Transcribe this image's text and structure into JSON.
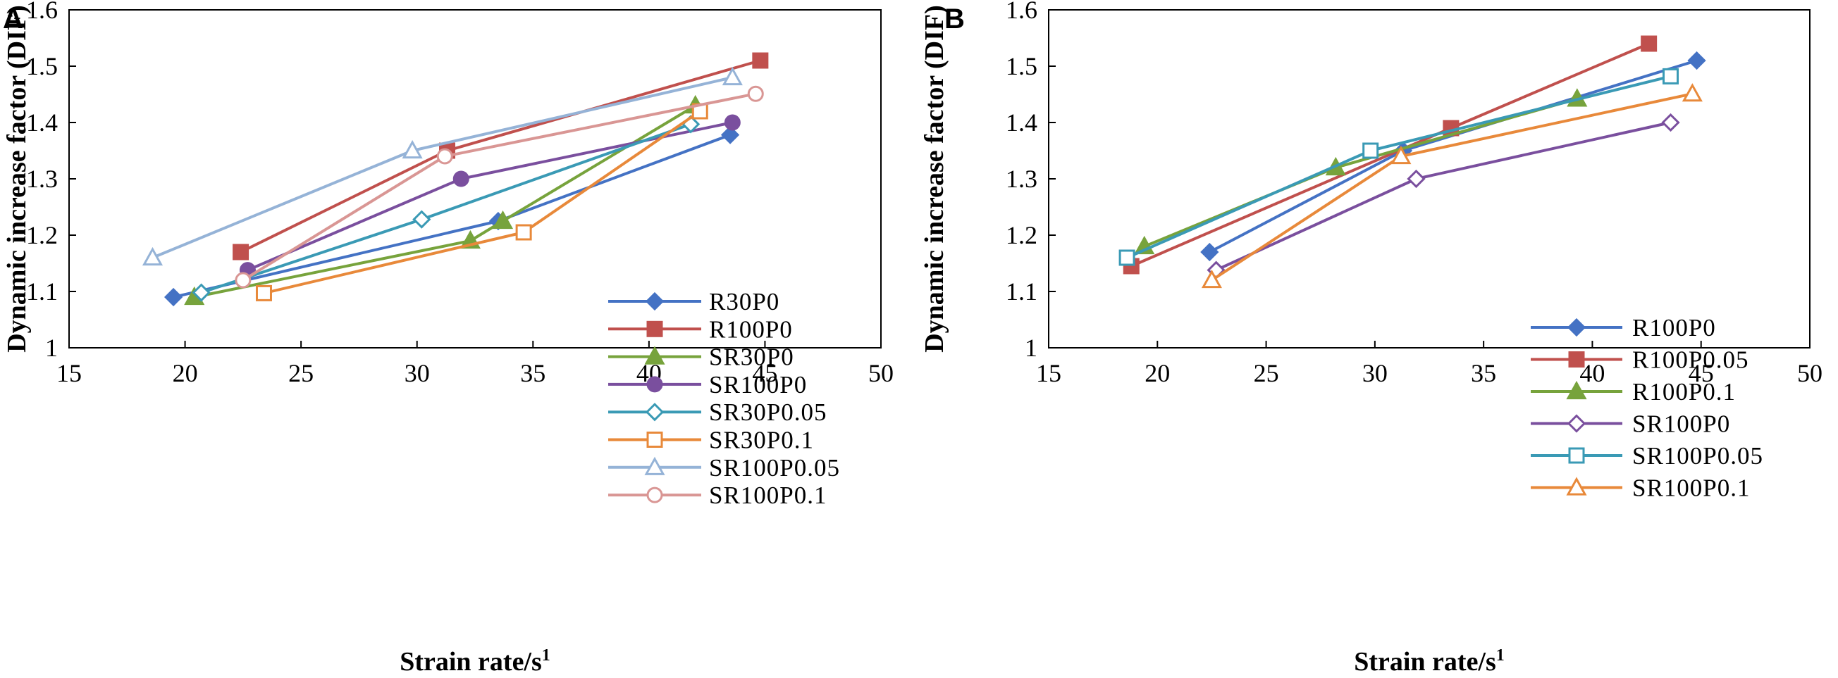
{
  "chart_data": [
    {
      "panel": "A",
      "type": "line",
      "xlabel": "Strain rate/s",
      "xlabel_sup": "1",
      "ylabel": "Dynamic increase factor (DIF)",
      "xlim": [
        15,
        50
      ],
      "ylim": [
        1,
        1.6
      ],
      "xticks": [
        15,
        20,
        25,
        30,
        35,
        40,
        45,
        50
      ],
      "yticks": [
        1,
        1.1,
        1.2,
        1.3,
        1.4,
        1.5,
        1.6
      ],
      "ytick_labels": [
        "1",
        "1.1",
        "1.2",
        "1.3",
        "1.4",
        "1.5",
        "1.6"
      ],
      "grid": false,
      "legend_position": "bottom-right",
      "series": [
        {
          "name": "R30P0",
          "color": "#4472C4",
          "marker": "diamond",
          "filled": true,
          "x": [
            19.5,
            33.5,
            43.5
          ],
          "y": [
            1.09,
            1.225,
            1.378
          ]
        },
        {
          "name": "R100P0",
          "color": "#C0504D",
          "marker": "square",
          "filled": true,
          "x": [
            22.4,
            31.3,
            44.8
          ],
          "y": [
            1.17,
            1.35,
            1.51
          ]
        },
        {
          "name": "SR30P0",
          "color": "#77A33C",
          "marker": "triangle",
          "filled": true,
          "x": [
            20.4,
            32.3,
            33.7,
            42.0
          ],
          "y": [
            1.09,
            1.19,
            1.225,
            1.43
          ]
        },
        {
          "name": "SR100P0",
          "color": "#7A4F9E",
          "marker": "circle",
          "filled": true,
          "x": [
            22.7,
            31.9,
            43.6
          ],
          "y": [
            1.138,
            1.3,
            1.4
          ]
        },
        {
          "name": "SR30P0.05",
          "color": "#3A9AB5",
          "marker": "diamond",
          "filled": false,
          "x": [
            20.7,
            30.2,
            41.8
          ],
          "y": [
            1.098,
            1.228,
            1.397
          ]
        },
        {
          "name": "SR30P0.1",
          "color": "#E8893A",
          "marker": "square",
          "filled": false,
          "x": [
            23.4,
            34.6,
            42.2
          ],
          "y": [
            1.097,
            1.205,
            1.42
          ]
        },
        {
          "name": "SR100P0.05",
          "color": "#95B3D7",
          "marker": "triangle",
          "filled": false,
          "x": [
            18.6,
            29.8,
            43.6
          ],
          "y": [
            1.16,
            1.35,
            1.48
          ]
        },
        {
          "name": "SR100P0.1",
          "color": "#D99694",
          "marker": "circle",
          "filled": false,
          "x": [
            22.5,
            31.2,
            44.6
          ],
          "y": [
            1.12,
            1.34,
            1.451
          ]
        }
      ]
    },
    {
      "panel": "B",
      "type": "line",
      "xlabel": "Strain rate/s",
      "xlabel_sup": "1",
      "ylabel": "Dynamic increase factor (DIF)",
      "xlim": [
        15,
        50
      ],
      "ylim": [
        1,
        1.6
      ],
      "xticks": [
        15,
        20,
        25,
        30,
        35,
        40,
        45,
        50
      ],
      "yticks": [
        1,
        1.1,
        1.2,
        1.3,
        1.4,
        1.5,
        1.6
      ],
      "ytick_labels": [
        "1",
        "1.1",
        "1.2",
        "1.3",
        "1.4",
        "1.5",
        "1.6"
      ],
      "grid": false,
      "legend_position": "bottom-right",
      "series": [
        {
          "name": "R100P0",
          "color": "#4472C4",
          "marker": "diamond",
          "filled": true,
          "x": [
            22.4,
            31.3,
            44.8
          ],
          "y": [
            1.17,
            1.35,
            1.51
          ]
        },
        {
          "name": "R100P0.05",
          "color": "#C0504D",
          "marker": "square",
          "filled": true,
          "x": [
            18.8,
            33.5,
            42.6
          ],
          "y": [
            1.145,
            1.39,
            1.54
          ]
        },
        {
          "name": "R100P0.1",
          "color": "#77A33C",
          "marker": "triangle",
          "filled": true,
          "x": [
            19.4,
            28.2,
            39.3
          ],
          "y": [
            1.18,
            1.32,
            1.442
          ]
        },
        {
          "name": "SR100P0",
          "color": "#7A4F9E",
          "marker": "diamond",
          "filled": false,
          "x": [
            22.7,
            31.9,
            43.6
          ],
          "y": [
            1.138,
            1.3,
            1.4
          ]
        },
        {
          "name": "SR100P0.05",
          "color": "#3A9AB5",
          "marker": "square",
          "filled": false,
          "x": [
            18.6,
            29.8,
            43.6
          ],
          "y": [
            1.16,
            1.35,
            1.482
          ]
        },
        {
          "name": "SR100P0.1",
          "color": "#E8893A",
          "marker": "triangle",
          "filled": false,
          "x": [
            22.5,
            31.2,
            44.6
          ],
          "y": [
            1.12,
            1.34,
            1.451
          ]
        }
      ]
    }
  ]
}
